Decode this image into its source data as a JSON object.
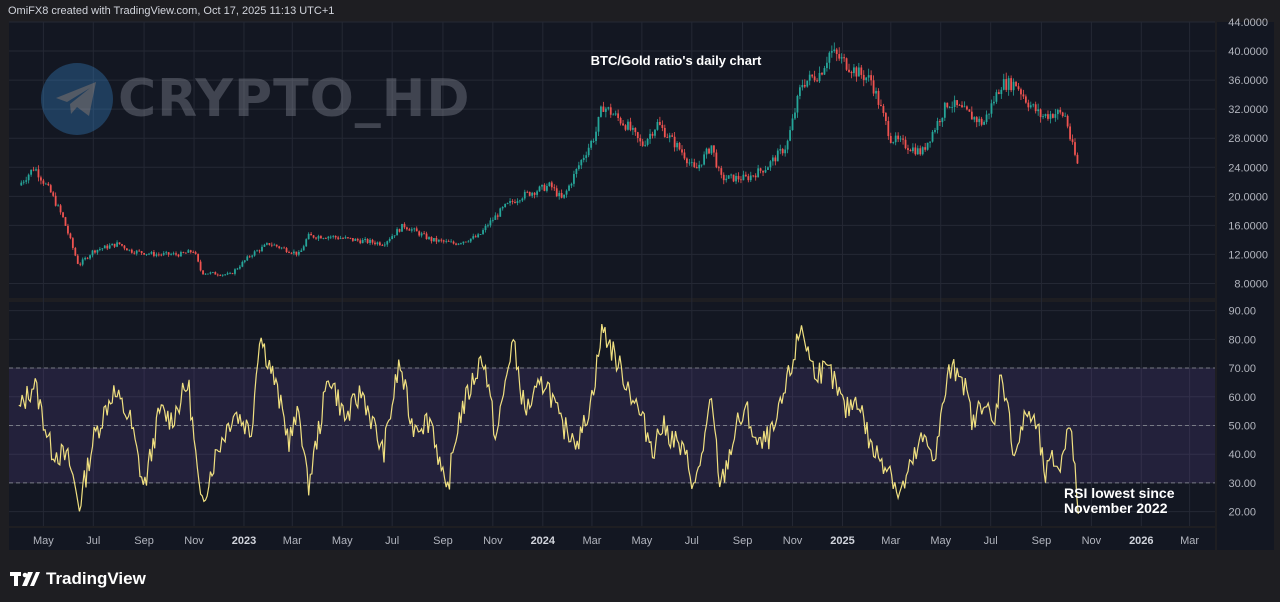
{
  "header": {
    "text": "OmiFX8 created with TradingView.com, Oct 17, 2025 11:13 UTC+1"
  },
  "footer": {
    "brand": "TradingView",
    "logo_icon": "tradingview-logo-icon"
  },
  "watermark": {
    "text": "CRYPTO_HD",
    "icon": "telegram-paper-plane-icon"
  },
  "colors": {
    "background": "#1e1e22",
    "pane": "#131722",
    "grid": "#242834",
    "candle_up": "#26a69a",
    "candle_down": "#ef5350",
    "rsi_line": "#f0e080",
    "rsi_band": "#7e57c2",
    "text": "#b2b5be"
  },
  "chart_data": [
    {
      "type": "candlestick",
      "title": "BTC/Gold ratio's daily chart",
      "ylim": [
        6.0,
        44.0
      ],
      "y_ticks": [
        "44.0000",
        "40.0000",
        "36.0000",
        "32.0000",
        "28.0000",
        "24.0000",
        "20.0000",
        "16.0000",
        "12.0000",
        "8.0000"
      ],
      "interval": "1D",
      "series": [
        {
          "x": [
            "2022-04-01",
            "2022-04-20",
            "2022-05-10",
            "2022-05-25",
            "2022-06-13",
            "2022-07-01",
            "2022-08-01",
            "2022-08-15",
            "2022-09-15",
            "2022-10-15",
            "2022-11-01",
            "2022-11-10",
            "2022-12-15",
            "2023-01-10",
            "2023-02-01",
            "2023-03-10",
            "2023-03-20",
            "2023-04-15",
            "2023-05-15",
            "2023-06-20",
            "2023-07-15",
            "2023-08-18",
            "2023-09-15",
            "2023-10-15",
            "2023-10-25",
            "2023-11-15",
            "2023-12-05",
            "2024-01-10",
            "2024-01-25",
            "2024-02-15",
            "2024-03-05",
            "2024-03-14",
            "2024-04-15",
            "2024-05-01",
            "2024-05-20",
            "2024-06-20",
            "2024-07-05",
            "2024-07-25",
            "2024-08-05",
            "2024-09-06",
            "2024-09-30",
            "2024-10-25",
            "2024-11-12",
            "2024-12-05",
            "2024-12-17",
            "2025-01-20",
            "2025-02-05",
            "2025-03-01",
            "2025-04-08",
            "2025-05-10",
            "2025-06-01",
            "2025-06-22",
            "2025-07-14",
            "2025-08-01",
            "2025-08-15",
            "2025-09-01",
            "2025-09-20",
            "2025-10-01",
            "2025-10-06",
            "2025-10-16"
          ],
          "close": [
            21.5,
            24.0,
            20.5,
            17.0,
            10.5,
            12.5,
            13.5,
            12.5,
            12.0,
            12.0,
            12.5,
            9.5,
            9.2,
            12.0,
            13.5,
            12.0,
            14.5,
            14.5,
            14.0,
            13.5,
            16.0,
            14.0,
            13.5,
            14.5,
            16.0,
            18.5,
            20.0,
            21.5,
            19.5,
            24.5,
            28.5,
            32.5,
            29.5,
            27.0,
            30.0,
            26.0,
            23.5,
            27.0,
            22.5,
            22.5,
            24.0,
            27.0,
            35.5,
            37.0,
            40.0,
            37.0,
            36.0,
            28.0,
            26.0,
            33.0,
            31.5,
            30.0,
            35.5,
            35.5,
            33.0,
            31.0,
            31.5,
            31.0,
            28.0,
            24.0
          ]
        }
      ]
    },
    {
      "type": "line",
      "ylim": [
        15.0,
        93.0
      ],
      "y_ticks": [
        "90.00",
        "80.00",
        "70.00",
        "60.00",
        "50.00",
        "40.00",
        "30.00",
        "20.00"
      ],
      "band": [
        30,
        70
      ],
      "midline": 50,
      "series": [
        {
          "x": [
            "2022-04-01",
            "2022-04-20",
            "2022-05-10",
            "2022-06-01",
            "2022-06-14",
            "2022-07-01",
            "2022-07-25",
            "2022-08-15",
            "2022-09-01",
            "2022-09-20",
            "2022-10-05",
            "2022-10-25",
            "2022-11-09",
            "2022-11-30",
            "2022-12-20",
            "2023-01-10",
            "2023-01-20",
            "2023-02-05",
            "2023-02-25",
            "2023-03-10",
            "2023-03-20",
            "2023-04-15",
            "2023-05-05",
            "2023-05-25",
            "2023-06-20",
            "2023-07-10",
            "2023-07-25",
            "2023-08-18",
            "2023-09-05",
            "2023-09-20",
            "2023-10-20",
            "2023-11-05",
            "2023-11-25",
            "2023-12-10",
            "2024-01-05",
            "2024-01-23",
            "2024-02-15",
            "2024-03-01",
            "2024-03-14",
            "2024-04-01",
            "2024-04-20",
            "2024-05-15",
            "2024-05-25",
            "2024-06-10",
            "2024-06-25",
            "2024-07-05",
            "2024-07-25",
            "2024-08-05",
            "2024-08-25",
            "2024-09-06",
            "2024-09-20",
            "2024-10-10",
            "2024-11-01",
            "2024-11-12",
            "2024-11-25",
            "2024-12-17",
            "2025-01-05",
            "2025-01-20",
            "2025-02-05",
            "2025-03-01",
            "2025-03-11",
            "2025-04-08",
            "2025-04-25",
            "2025-05-10",
            "2025-05-25",
            "2025-06-10",
            "2025-06-22",
            "2025-07-05",
            "2025-07-14",
            "2025-07-30",
            "2025-08-15",
            "2025-08-28",
            "2025-09-05",
            "2025-09-15",
            "2025-09-25",
            "2025-10-05",
            "2025-10-10",
            "2025-10-16"
          ],
          "values": [
            55,
            65,
            42,
            38,
            22,
            45,
            62,
            52,
            28,
            55,
            52,
            65,
            22,
            42,
            55,
            48,
            82,
            68,
            45,
            55,
            28,
            68,
            52,
            62,
            40,
            72,
            50,
            52,
            25,
            52,
            75,
            45,
            80,
            55,
            66,
            50,
            45,
            60,
            84,
            72,
            60,
            42,
            50,
            45,
            38,
            28,
            58,
            28,
            50,
            55,
            42,
            48,
            72,
            85,
            70,
            68,
            55,
            60,
            42,
            35,
            25,
            45,
            40,
            68,
            70,
            50,
            60,
            48,
            70,
            40,
            55,
            48,
            32,
            38,
            35,
            55,
            38,
            22
          ]
        }
      ],
      "annotation": [
        "RSI lowest since",
        "November 2022"
      ]
    }
  ],
  "x_axis": {
    "labels": [
      {
        "text": "May",
        "bold": false
      },
      {
        "text": "Jul",
        "bold": false
      },
      {
        "text": "Sep",
        "bold": false
      },
      {
        "text": "Nov",
        "bold": false
      },
      {
        "text": "2023",
        "bold": true
      },
      {
        "text": "Mar",
        "bold": false
      },
      {
        "text": "May",
        "bold": false
      },
      {
        "text": "Jul",
        "bold": false
      },
      {
        "text": "Sep",
        "bold": false
      },
      {
        "text": "Nov",
        "bold": false
      },
      {
        "text": "2024",
        "bold": true
      },
      {
        "text": "Mar",
        "bold": false
      },
      {
        "text": "May",
        "bold": false
      },
      {
        "text": "Jul",
        "bold": false
      },
      {
        "text": "Sep",
        "bold": false
      },
      {
        "text": "Nov",
        "bold": false
      },
      {
        "text": "2025",
        "bold": true
      },
      {
        "text": "Mar",
        "bold": false
      },
      {
        "text": "May",
        "bold": false
      },
      {
        "text": "Jul",
        "bold": false
      },
      {
        "text": "Sep",
        "bold": false
      },
      {
        "text": "Nov",
        "bold": false
      },
      {
        "text": "2026",
        "bold": true
      },
      {
        "text": "Mar",
        "bold": false
      }
    ],
    "dates": [
      "2022-05-01",
      "2022-07-01",
      "2022-09-01",
      "2022-11-01",
      "2023-01-01",
      "2023-03-01",
      "2023-05-01",
      "2023-07-01",
      "2023-09-01",
      "2023-11-01",
      "2024-01-01",
      "2024-03-01",
      "2024-05-01",
      "2024-07-01",
      "2024-09-01",
      "2024-11-01",
      "2025-01-01",
      "2025-03-01",
      "2025-05-01",
      "2025-07-01",
      "2025-09-01",
      "2025-11-01",
      "2026-01-01",
      "2026-03-01"
    ]
  }
}
